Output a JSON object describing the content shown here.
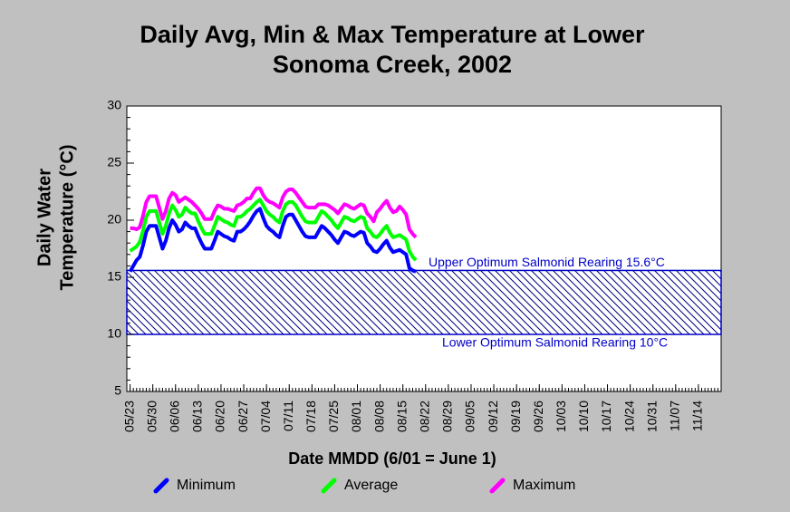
{
  "chart_data": {
    "type": "line",
    "title": [
      "Daily Avg, Min & Max Temperature at Lower",
      "Sonoma Creek, 2002"
    ],
    "ylabel": [
      "Daily Water",
      "Temperature (°C)"
    ],
    "xlabel": "Date MMDD (6/01 = June 1)",
    "x": [
      "05/23",
      "05/24",
      "05/25",
      "05/26",
      "05/27",
      "05/28",
      "05/29",
      "05/30",
      "05/31",
      "06/01",
      "06/02",
      "06/03",
      "06/04",
      "06/05",
      "06/06",
      "06/07",
      "06/08",
      "06/09",
      "06/10",
      "06/11",
      "06/12",
      "06/13",
      "06/14",
      "06/15",
      "06/16",
      "06/17",
      "06/18",
      "06/19",
      "06/20",
      "06/21",
      "06/22",
      "06/23",
      "06/24",
      "06/25",
      "06/26",
      "06/27",
      "06/28",
      "06/29",
      "06/30",
      "07/01",
      "07/02",
      "07/03",
      "07/04",
      "07/05",
      "07/06",
      "07/07",
      "07/08",
      "07/09",
      "07/10",
      "07/11",
      "07/12",
      "07/13",
      "07/14",
      "07/15",
      "07/16",
      "07/17",
      "07/18",
      "07/19",
      "07/20",
      "07/21",
      "07/22",
      "07/23",
      "07/24",
      "07/25",
      "07/26",
      "07/27",
      "07/28",
      "07/29",
      "07/30",
      "07/31",
      "08/01",
      "08/02",
      "08/03",
      "08/04",
      "08/05",
      "08/06",
      "08/07",
      "08/08",
      "08/09",
      "08/10",
      "08/11",
      "08/12",
      "08/13",
      "08/14",
      "08/15",
      "08/16",
      "08/17",
      "08/18",
      "08/19"
    ],
    "series": [
      {
        "name": "Minimum",
        "color": "#0000ff",
        "values": [
          15.5,
          16.0,
          16.5,
          16.8,
          17.8,
          19.0,
          19.5,
          19.5,
          19.5,
          18.5,
          17.5,
          18.2,
          19.3,
          20.0,
          19.6,
          19.0,
          19.2,
          19.8,
          19.5,
          19.3,
          19.3,
          18.6,
          18.0,
          17.5,
          17.5,
          17.5,
          18.2,
          19.0,
          18.8,
          18.6,
          18.5,
          18.3,
          18.2,
          19.0,
          19.0,
          19.2,
          19.5,
          19.9,
          20.4,
          20.8,
          21.0,
          20.2,
          19.5,
          19.2,
          19.0,
          18.7,
          18.5,
          19.5,
          20.3,
          20.5,
          20.5,
          20.0,
          19.5,
          19.0,
          18.6,
          18.5,
          18.5,
          18.5,
          19.0,
          19.5,
          19.3,
          19.0,
          18.7,
          18.3,
          18.0,
          18.5,
          19.0,
          18.9,
          18.7,
          18.6,
          18.8,
          19.0,
          18.9,
          18.0,
          17.7,
          17.3,
          17.2,
          17.5,
          17.9,
          18.2,
          17.6,
          17.2,
          17.3,
          17.4,
          17.2,
          17.0,
          15.8,
          15.6,
          15.5
        ]
      },
      {
        "name": "Average",
        "color": "#00ff00",
        "values": [
          17.3,
          17.5,
          17.7,
          18.1,
          19.1,
          20.3,
          20.8,
          20.8,
          20.8,
          19.8,
          18.8,
          19.5,
          20.6,
          21.3,
          20.9,
          20.3,
          20.5,
          21.1,
          20.8,
          20.6,
          20.6,
          19.9,
          19.3,
          18.8,
          18.8,
          18.8,
          19.5,
          20.3,
          20.1,
          19.9,
          19.8,
          19.6,
          19.5,
          20.3,
          20.3,
          20.5,
          20.8,
          21.0,
          21.3,
          21.6,
          21.8,
          21.3,
          20.8,
          20.5,
          20.3,
          20.0,
          19.8,
          20.8,
          21.4,
          21.6,
          21.6,
          21.3,
          20.8,
          20.3,
          19.9,
          19.8,
          19.8,
          19.8,
          20.3,
          20.8,
          20.6,
          20.3,
          20.0,
          19.6,
          19.3,
          19.8,
          20.3,
          20.2,
          20.0,
          19.9,
          20.1,
          20.3,
          20.2,
          19.3,
          19.0,
          18.6,
          18.5,
          18.8,
          19.2,
          19.5,
          18.9,
          18.5,
          18.6,
          18.7,
          18.5,
          18.3,
          17.3,
          16.8,
          16.5
        ]
      },
      {
        "name": "Maximum",
        "color": "#ff00ff",
        "values": [
          19.3,
          19.3,
          19.2,
          19.4,
          20.4,
          21.6,
          22.1,
          22.1,
          22.1,
          21.1,
          20.1,
          20.8,
          21.9,
          22.4,
          22.2,
          21.6,
          21.8,
          22.0,
          21.8,
          21.6,
          21.3,
          21.0,
          20.6,
          20.1,
          20.1,
          20.1,
          20.8,
          21.3,
          21.2,
          21.0,
          21.0,
          20.9,
          20.8,
          21.3,
          21.4,
          21.6,
          21.9,
          21.9,
          22.4,
          22.8,
          22.8,
          22.2,
          21.8,
          21.6,
          21.5,
          21.3,
          21.1,
          22.0,
          22.5,
          22.7,
          22.7,
          22.4,
          22.0,
          21.6,
          21.2,
          21.1,
          21.1,
          21.1,
          21.4,
          21.4,
          21.4,
          21.3,
          21.1,
          20.9,
          20.6,
          21.0,
          21.4,
          21.3,
          21.1,
          21.0,
          21.2,
          21.4,
          21.3,
          20.6,
          20.3,
          19.9,
          20.7,
          21.0,
          21.4,
          21.7,
          21.1,
          20.7,
          20.8,
          21.2,
          20.9,
          20.5,
          19.2,
          18.8,
          18.5
        ]
      }
    ],
    "ylim": [
      5,
      30
    ],
    "yticks": [
      5,
      10,
      15,
      20,
      25,
      30
    ],
    "xlim": [
      "05/22",
      "11/21"
    ],
    "xticks": [
      "05/23",
      "05/30",
      "06/06",
      "06/13",
      "06/20",
      "06/27",
      "07/04",
      "07/11",
      "07/18",
      "07/25",
      "08/01",
      "08/08",
      "08/15",
      "08/22",
      "08/29",
      "09/05",
      "09/12",
      "09/19",
      "09/26",
      "10/03",
      "10/10",
      "10/17",
      "10/24",
      "10/31",
      "11/07",
      "11/14"
    ],
    "bands": [
      {
        "from": 10,
        "to": 15.6,
        "color": "#0000c8",
        "upper_label": "Upper Optimum Salmonid Rearing 15.6°C",
        "lower_label": "Lower Optimum Salmonid Rearing 10°C"
      }
    ],
    "legend": "bottom"
  }
}
